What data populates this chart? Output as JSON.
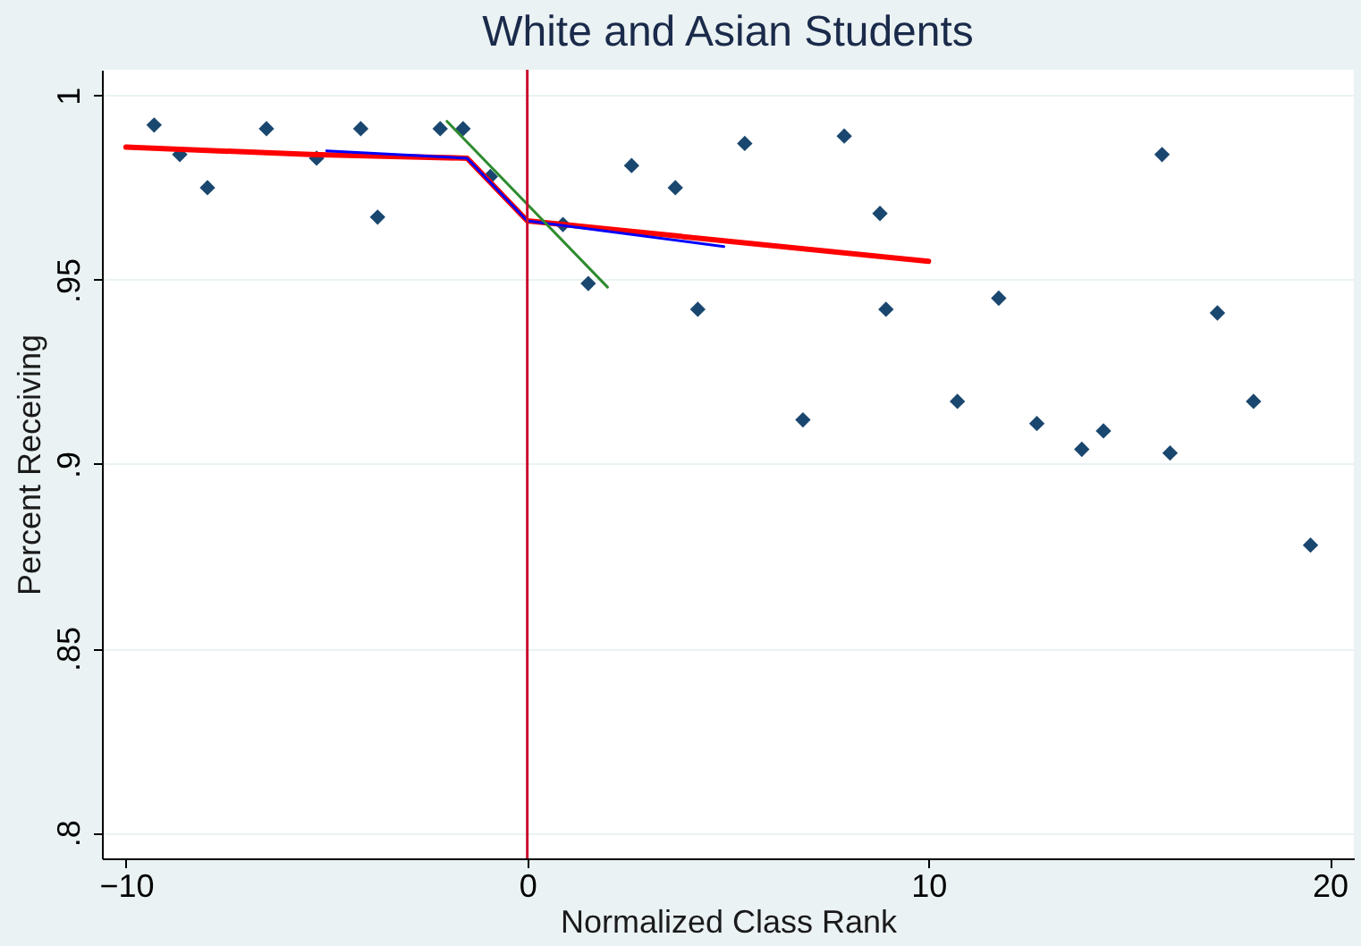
{
  "chart_data": {
    "type": "scatter",
    "title": "White and Asian Students",
    "xlabel": "Normalized Class Rank",
    "ylabel": "Percent Receiving",
    "xlim": [
      -10.6,
      20.6
    ],
    "ylim": [
      0.793,
      1.007
    ],
    "xticks": [
      -10,
      0,
      10,
      20
    ],
    "yticks": [
      {
        "value": 0.8,
        "label": ".8"
      },
      {
        "value": 0.85,
        "label": ".85"
      },
      {
        "value": 0.9,
        "label": ".9"
      },
      {
        "value": 0.95,
        "label": ".95"
      },
      1
    ],
    "grid": "y",
    "ref_lines": [
      {
        "axis": "x",
        "value": 0,
        "color": "#c8102e"
      }
    ],
    "series": [
      {
        "marker": "diamond",
        "color": "#1a476f",
        "x": [
          -9.3,
          -8.66,
          -7.97,
          -6.5,
          -5.25,
          -4.15,
          -3.73,
          -2.17,
          -1.6,
          -0.92,
          0.89,
          1.52,
          2.6,
          3.69,
          4.25,
          5.42,
          6.87,
          7.9,
          8.79,
          8.94,
          10.72,
          11.75,
          12.7,
          13.82,
          14.36,
          15.82,
          16.02,
          17.2,
          18.1,
          19.52
        ],
        "values": [
          0.992,
          0.984,
          0.975,
          0.991,
          0.983,
          0.991,
          0.967,
          0.991,
          0.991,
          0.978,
          0.965,
          0.949,
          0.981,
          0.975,
          0.942,
          0.987,
          0.912,
          0.989,
          0.968,
          0.942,
          0.917,
          0.945,
          0.911,
          0.904,
          0.909,
          0.984,
          0.903,
          0.941,
          0.917,
          0.878
        ]
      },
      {
        "type": "line",
        "marker": "none",
        "color": "#ff0000",
        "x": [
          -10,
          -5.4,
          -1.5,
          0,
          10
        ],
        "values": [
          0.986,
          0.984,
          0.983,
          0.966,
          0.955
        ]
      },
      {
        "type": "line",
        "marker": "none",
        "color": "#0000ff",
        "x": [
          -5.0,
          -1.5,
          0,
          4.9
        ],
        "values": [
          0.985,
          0.983,
          0.966,
          0.959
        ]
      },
      {
        "type": "line",
        "marker": "none",
        "color": "#2e8b2e",
        "x": [
          -2.0,
          2.0
        ],
        "values": [
          0.993,
          0.948
        ]
      }
    ]
  }
}
